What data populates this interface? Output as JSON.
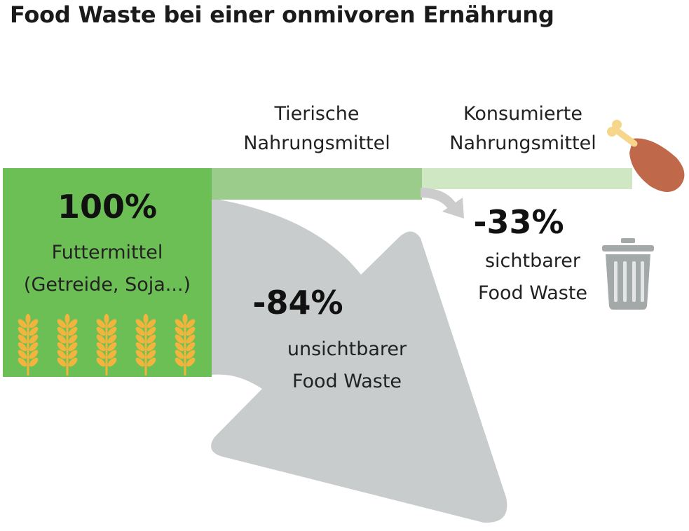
{
  "title": "Food Waste bei einer onmivoren Ernährung",
  "stages": {
    "animal_food": {
      "line1": "Tierische",
      "line2": "Nahrungsmittel"
    },
    "consumed_food": {
      "line1": "Konsumierte",
      "line2": "Nahrungsmittel"
    }
  },
  "feed": {
    "percent": "100%",
    "label_line1": "Futtermittel",
    "label_line2": "(Getreide, Soja...)"
  },
  "invisible_waste": {
    "percent": "-84%",
    "label_line1": "unsichtbarer",
    "label_line2": "Food Waste"
  },
  "visible_waste": {
    "percent": "-33%",
    "label_line1": "sichtbarer",
    "label_line2": "Food Waste"
  },
  "icons": {
    "wheat": "wheat-icon",
    "meat": "chicken-leg-icon",
    "trash": "trash-can-icon"
  },
  "colors": {
    "feed_green": "#6cbf55",
    "animal_green": "#9ccc8c",
    "consumed_green": "#cfe7c3",
    "waste_gray": "#c8cccc",
    "arrow_gray": "#cccccc",
    "wheat_gold": "#f2b43c",
    "meat_brown": "#c0684a",
    "bone": "#f6d68a",
    "trash_gray": "#a3a9a8"
  }
}
